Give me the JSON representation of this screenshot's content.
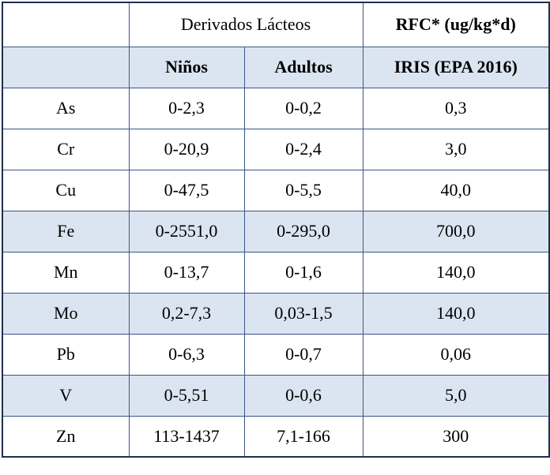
{
  "header": {
    "corner": "",
    "group_label": "Derivados Lácteos",
    "rfc_label": "RFC* (ug/kg*d)",
    "sub_corner": "",
    "col_children": "Niños",
    "col_adults": "Adultos",
    "col_iris": "IRIS (EPA 2016)"
  },
  "rows": [
    {
      "element": "As",
      "children": "0-2,3",
      "adults": "0-0,2",
      "rfc": "0,3"
    },
    {
      "element": "Cr",
      "children": "0-20,9",
      "adults": "0-2,4",
      "rfc": "3,0"
    },
    {
      "element": "Cu",
      "children": "0-47,5",
      "adults": "0-5,5",
      "rfc": "40,0"
    },
    {
      "element": "Fe",
      "children": "0-2551,0",
      "adults": "0-295,0",
      "rfc": "700,0"
    },
    {
      "element": "Mn",
      "children": "0-13,7",
      "adults": "0-1,6",
      "rfc": "140,0"
    },
    {
      "element": "Mo",
      "children": "0,2-7,3",
      "adults": "0,03-1,5",
      "rfc": "140,0"
    },
    {
      "element": "Pb",
      "children": "0-6,3",
      "adults": "0-0,7",
      "rfc": "0,06"
    },
    {
      "element": "V",
      "children": "0-5,51",
      "adults": "0-0,6",
      "rfc": "5,0"
    },
    {
      "element": "Zn",
      "children": "113-1437",
      "adults": "7,1-166",
      "rfc": "300"
    }
  ],
  "colors": {
    "border": "#3a5587",
    "shade": "#dbe5f1"
  }
}
